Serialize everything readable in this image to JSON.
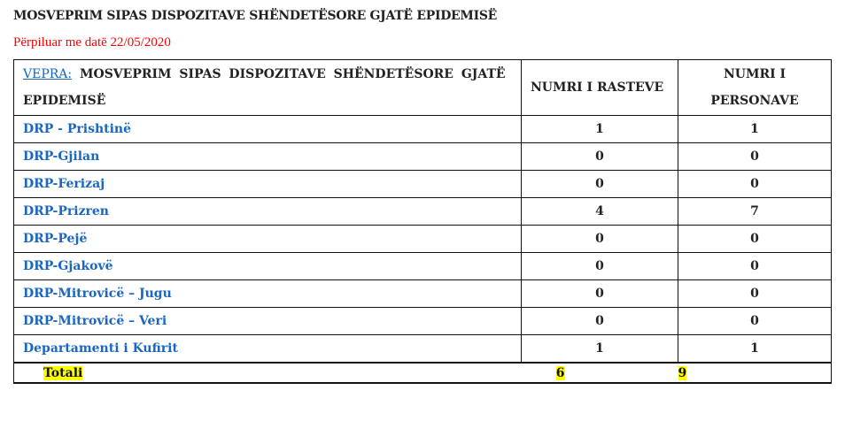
{
  "title": "MOSVEPRIM SIPAS DISPOZITAVE SHËNDETËSORE GJATË EPIDEMISË",
  "subtitle": "Përpiluar me datë 22/05/2020",
  "table": {
    "header": {
      "vepra_label": "VEPRA:",
      "col0": "MOSVEPRIM SIPAS DISPOZITAVE SHËNDETËSORE GJATË EPIDEMISË",
      "col1": "NUMRI I RASTEVE",
      "col2": "NUMRI I PERSONAVE"
    },
    "rows": [
      {
        "name": "DRP - Prishtinë",
        "rastet": "1",
        "personat": "1"
      },
      {
        "name": "DRP-Gjilan",
        "rastet": "0",
        "personat": "0"
      },
      {
        "name": "DRP-Ferizaj",
        "rastet": "0",
        "personat": "0"
      },
      {
        "name": "DRP-Prizren",
        "rastet": "4",
        "personat": "7"
      },
      {
        "name": "DRP-Pejë",
        "rastet": "0",
        "personat": "0"
      },
      {
        "name": "DRP-Gjakovë",
        "rastet": "0",
        "personat": "0"
      },
      {
        "name": "DRP-Mitrovicë – Jugu",
        "rastet": "0",
        "personat": "0"
      },
      {
        "name": "DRP-Mitrovicë – Veri",
        "rastet": "0",
        "personat": "0"
      },
      {
        "name": "Departamenti i Kufirit",
        "rastet": "1",
        "personat": "1"
      }
    ],
    "total": {
      "label": "Totali",
      "rastet": "6",
      "personat": "9"
    }
  },
  "colors": {
    "link": "#1a66c2",
    "subtitle": "#ff0000",
    "highlight": "#ffff00"
  }
}
